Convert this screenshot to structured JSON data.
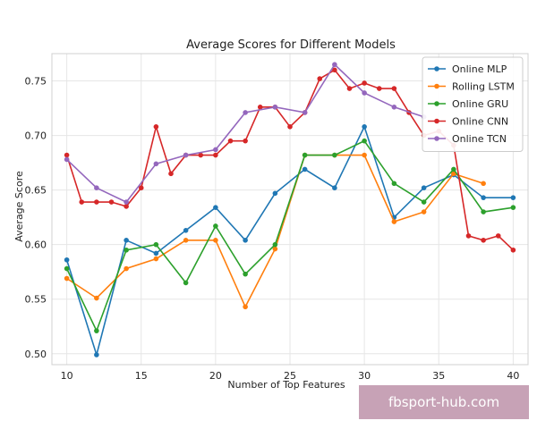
{
  "chart_data": {
    "type": "line",
    "title": "Average Scores for Different Models",
    "xlabel": "Number of Top Features",
    "ylabel": "Average Score",
    "xlim": [
      9,
      41
    ],
    "ylim": [
      0.49,
      0.775
    ],
    "xticks": [
      10,
      15,
      20,
      25,
      30,
      35,
      40
    ],
    "yticks": [
      0.5,
      0.55,
      0.6,
      0.65,
      0.7,
      0.75
    ],
    "ytick_labels": [
      "0.50",
      "0.55",
      "0.60",
      "0.65",
      "0.70",
      "0.75"
    ],
    "grid": true,
    "legend_position": "top-right",
    "series": [
      {
        "name": "Online MLP",
        "color": "#1f77b4",
        "x": [
          10,
          12,
          14,
          16,
          18,
          20,
          22,
          24,
          26,
          28,
          30,
          32,
          34,
          36,
          38,
          40
        ],
        "y": [
          0.586,
          0.499,
          0.604,
          0.592,
          0.613,
          0.634,
          0.604,
          0.647,
          0.669,
          0.652,
          0.708,
          0.625,
          0.652,
          0.664,
          0.643,
          0.643
        ]
      },
      {
        "name": "Rolling LSTM",
        "color": "#ff7f0e",
        "x": [
          10,
          12,
          14,
          16,
          18,
          20,
          22,
          24,
          26,
          28,
          30,
          32,
          34,
          36,
          38
        ],
        "y": [
          0.569,
          0.551,
          0.578,
          0.587,
          0.604,
          0.604,
          0.543,
          0.596,
          0.682,
          0.682,
          0.682,
          0.621,
          0.63,
          0.665,
          0.656
        ]
      },
      {
        "name": "Online GRU",
        "color": "#2ca02c",
        "x": [
          10,
          12,
          14,
          16,
          18,
          20,
          22,
          24,
          26,
          28,
          30,
          32,
          34,
          36,
          38,
          40
        ],
        "y": [
          0.578,
          0.521,
          0.595,
          0.6,
          0.565,
          0.617,
          0.573,
          0.6,
          0.682,
          0.682,
          0.695,
          0.656,
          0.639,
          0.669,
          0.63,
          0.634
        ]
      },
      {
        "name": "Online CNN",
        "color": "#d62728",
        "x": [
          10,
          11,
          12,
          13,
          14,
          15,
          16,
          17,
          18,
          19,
          20,
          21,
          22,
          23,
          24,
          25,
          26,
          27,
          28,
          29,
          30,
          31,
          32,
          33,
          34,
          35,
          36,
          37,
          38,
          39,
          40
        ],
        "y": [
          0.682,
          0.639,
          0.639,
          0.639,
          0.635,
          0.652,
          0.708,
          0.665,
          0.682,
          0.682,
          0.682,
          0.695,
          0.695,
          0.726,
          0.726,
          0.708,
          0.721,
          0.752,
          0.76,
          0.743,
          0.748,
          0.743,
          0.743,
          0.721,
          0.7,
          0.704,
          0.691,
          0.608,
          0.604,
          0.608,
          0.595
        ]
      },
      {
        "name": "Online TCN",
        "color": "#9467bd",
        "x": [
          10,
          12,
          14,
          16,
          18,
          20,
          22,
          24,
          26,
          28,
          30,
          32,
          34
        ],
        "y": [
          0.678,
          0.652,
          0.639,
          0.674,
          0.682,
          0.687,
          0.721,
          0.726,
          0.721,
          0.765,
          0.739,
          0.726,
          0.717
        ]
      }
    ]
  },
  "watermark": {
    "text": "fbsport-hub.com",
    "background": "#c7a2b6"
  }
}
